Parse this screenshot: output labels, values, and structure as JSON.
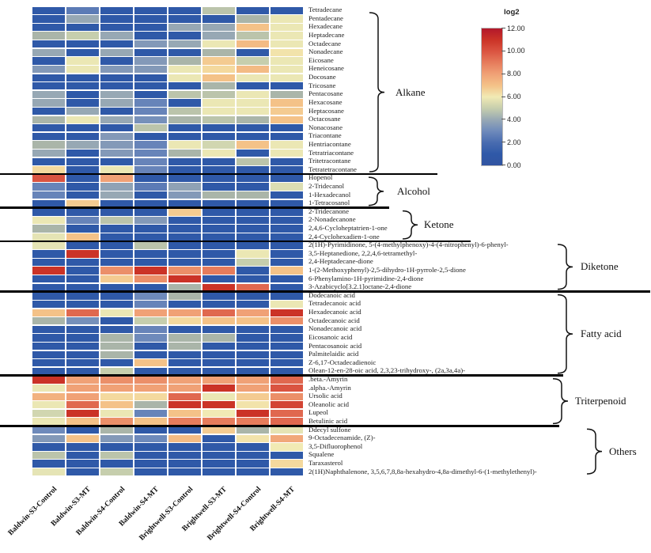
{
  "chart_data": {
    "type": "heatmap",
    "value_scale": "log2",
    "legend": {
      "title": "log2",
      "min": 0,
      "max": 12,
      "ticks": [
        "12.00",
        "10.00",
        "8.00",
        "6.00",
        "4.00",
        "2.00",
        "0.00"
      ]
    },
    "colormap": [
      {
        "v": 0,
        "c": "#3154a1"
      },
      {
        "v": 1,
        "c": "#2f59a8"
      },
      {
        "v": 2,
        "c": "#496cb0"
      },
      {
        "v": 3,
        "c": "#6e8abb"
      },
      {
        "v": 4,
        "c": "#97a8b4"
      },
      {
        "v": 4.5,
        "c": "#aab5a9"
      },
      {
        "v": 5,
        "c": "#c6cead"
      },
      {
        "v": 5.5,
        "c": "#e2e2b5"
      },
      {
        "v": 6,
        "c": "#f1eab4"
      },
      {
        "v": 6.5,
        "c": "#f4d99e"
      },
      {
        "v": 7,
        "c": "#f4c288"
      },
      {
        "v": 8,
        "c": "#f0a176"
      },
      {
        "v": 9,
        "c": "#e67c5c"
      },
      {
        "v": 10,
        "c": "#da5441"
      },
      {
        "v": 11,
        "c": "#cb3327"
      },
      {
        "v": 12,
        "c": "#b2182b"
      }
    ],
    "columns": [
      "Baldwin-S3-Control",
      "Baldwin-S3-MT",
      "Baldwin-S4-Control",
      "Baldwin-S4-MT",
      "Brightwell-S3-Control",
      "Brightwell-S3-MT",
      "Brightwell-S4-Control",
      "Brightwell-S4-MT"
    ],
    "groups": [
      {
        "name": "Alkane",
        "rows": [
          {
            "label": "Tetradecane",
            "values": [
              1,
              2.5,
              1,
              1,
              1,
              4.8,
              1,
              1
            ]
          },
          {
            "label": "Pentadecane",
            "values": [
              1,
              4,
              1,
              1,
              1,
              1,
              4.5,
              5.8
            ]
          },
          {
            "label": "Hexadecane",
            "values": [
              1,
              1,
              1,
              1,
              4,
              4,
              7,
              5.8
            ]
          },
          {
            "label": "Heptadecane",
            "values": [
              4.5,
              5,
              4,
              1,
              1,
              4,
              4.8,
              5.8
            ]
          },
          {
            "label": "Octadecane",
            "values": [
              1,
              1,
              1,
              3.5,
              4,
              5.8,
              7.2,
              5.8
            ]
          },
          {
            "label": "Nonadecane",
            "values": [
              4,
              1,
              4,
              1,
              1,
              4.5,
              1,
              6.2
            ]
          },
          {
            "label": "Eicosane",
            "values": [
              1,
              5.8,
              1,
              3.5,
              4.5,
              6.8,
              5,
              5.8
            ]
          },
          {
            "label": "Heneicosane",
            "values": [
              3.5,
              5.8,
              3.5,
              3.5,
              5.8,
              6.5,
              7.2,
              5.8
            ]
          },
          {
            "label": "Docosane",
            "values": [
              1,
              1,
              1,
              1,
              5.8,
              7,
              5.8,
              5.8
            ]
          },
          {
            "label": "Tricosane",
            "values": [
              1,
              1,
              1,
              1,
              1,
              4.5,
              1,
              1
            ]
          },
          {
            "label": "Pentacosane",
            "values": [
              4,
              1,
              4,
              1,
              4.8,
              4.8,
              5.8,
              4.5
            ]
          },
          {
            "label": "Hexacosane",
            "values": [
              4,
              1,
              4,
              2.8,
              1,
              5.8,
              5.8,
              7
            ]
          },
          {
            "label": "Heptacosane",
            "values": [
              1,
              4,
              1,
              2.8,
              4.8,
              5.8,
              5.8,
              6.8
            ]
          },
          {
            "label": "Octacosane",
            "values": [
              4.5,
              5.8,
              4,
              3.2,
              4.5,
              4.8,
              4.5,
              7
            ]
          },
          {
            "label": "Nonacosane",
            "values": [
              1,
              1,
              1,
              4.8,
              1,
              1,
              1,
              1
            ]
          },
          {
            "label": "Triacontane",
            "values": [
              1,
              1,
              3.5,
              1,
              1,
              1,
              1,
              1
            ]
          },
          {
            "label": "Hentriacontane",
            "values": [
              4.5,
              4,
              3.5,
              2.8,
              5.8,
              5.2,
              7,
              5.8
            ]
          },
          {
            "label": "Tetratriacontane",
            "values": [
              4,
              1,
              3.5,
              2.8,
              4.5,
              5.8,
              1,
              5.8
            ]
          },
          {
            "label": "Tritetracontane",
            "values": [
              1,
              1,
              1,
              2.8,
              1,
              1,
              4.8,
              1
            ]
          },
          {
            "label": "Tetratetracontane",
            "values": [
              6.5,
              1,
              5.8,
              2.8,
              1,
              1,
              1,
              1
            ]
          }
        ]
      },
      {
        "name": "Alcohol",
        "rows": [
          {
            "label": "Hopenol",
            "values": [
              10,
              1,
              8,
              1,
              1,
              1,
              1,
              1
            ]
          },
          {
            "label": "2-Tridecanol",
            "values": [
              2.8,
              1,
              3.8,
              2.5,
              3.8,
              1,
              1,
              5.4
            ]
          },
          {
            "label": "1-Hexadecanol",
            "values": [
              2.8,
              1,
              4,
              1,
              3.5,
              4.5,
              4.5,
              1
            ]
          },
          {
            "label": "1-Tetracosanol",
            "values": [
              1,
              6.8,
              1,
              1,
              1,
              1,
              1,
              1
            ]
          }
        ]
      },
      {
        "name": "Ketone",
        "rows": [
          {
            "label": "2-Tridecanone",
            "values": [
              1,
              1,
              1,
              1,
              6.8,
              1,
              1,
              1
            ]
          },
          {
            "label": "2-Nonadecanone",
            "values": [
              5.8,
              2.8,
              4.8,
              3.5,
              1,
              1,
              1,
              1
            ]
          },
          {
            "label": "2,4,6-Cycloheptatrien-1-one",
            "values": [
              4.5,
              1,
              1,
              1,
              1,
              1,
              1,
              1
            ]
          },
          {
            "label": "2,4-Cyclohexadien-1-one",
            "values": [
              5.6,
              7,
              1,
              1,
              1,
              1,
              1,
              1
            ]
          }
        ]
      },
      {
        "name": "Diketone",
        "rows": [
          {
            "label": "2(1H)-Pyrimidinone, 5-(4-methylphenoxy)-4-(4-nitrophenyl)-6-phenyl-",
            "values": [
              5.6,
              1,
              1,
              4.8,
              1,
              1,
              1,
              1
            ]
          },
          {
            "label": "3,5-Heptanedione, 2,2,4,6-tetramethyl-",
            "values": [
              1,
              11,
              1,
              1,
              1,
              1,
              5.8,
              1
            ]
          },
          {
            "label": "2,4-Heptadecane-dione",
            "values": [
              1,
              1,
              1,
              1,
              1,
              1,
              5,
              1
            ]
          },
          {
            "label": "1-(2-Methoxyphenyl)-2,5-dihydro-1H-pyrrole-2,5-dione",
            "values": [
              11,
              1,
              8.5,
              11,
              8.5,
              9,
              1,
              7
            ]
          },
          {
            "label": "6-Phenylamino-1H-pyrimidine-2,4-dione",
            "values": [
              1,
              1,
              6.8,
              8.5,
              11,
              1,
              1,
              1
            ]
          },
          {
            "label": "3-Azabicyclo[3.2.1]octane-2,4-dione",
            "values": [
              1,
              1,
              1,
              1,
              4.5,
              11,
              9.5,
              1
            ]
          }
        ]
      },
      {
        "name": "Fatty acid",
        "rows": [
          {
            "label": "Dodecanoic acid",
            "values": [
              1,
              1,
              1,
              3,
              4.5,
              1,
              1,
              1
            ]
          },
          {
            "label": "Tetradecanoic acid",
            "values": [
              1,
              1,
              1,
              2.8,
              1,
              1,
              1,
              5.8
            ]
          },
          {
            "label": "Hexadecanoic acid",
            "values": [
              7,
              9.5,
              5.8,
              8,
              8,
              9.5,
              8,
              11
            ]
          },
          {
            "label": "Octadecanoic acid",
            "values": [
              4.5,
              3.2,
              1,
              5,
              6.5,
              7,
              7,
              8.5
            ]
          },
          {
            "label": "Nonadecanoic acid",
            "values": [
              1,
              1,
              1,
              2.8,
              1,
              1,
              1,
              1
            ]
          },
          {
            "label": "Eicosanoic acid",
            "values": [
              1,
              1,
              4.5,
              3,
              4.5,
              4.5,
              1,
              1
            ]
          },
          {
            "label": "Pentacosanoic acid",
            "values": [
              1,
              1,
              4.5,
              1,
              4.5,
              1,
              1,
              1
            ]
          },
          {
            "label": "Palmitelaidic acid",
            "values": [
              1,
              1,
              4.5,
              1,
              1,
              1,
              1,
              1
            ]
          },
          {
            "label": "Z-6,17-Octadecadienoic",
            "values": [
              1,
              1,
              1,
              7,
              1,
              1,
              1,
              1
            ]
          },
          {
            "label": "Olean-12-en-28-oic acid, 2,3,23-trihydroxy-, (2a,3a,4a)-",
            "values": [
              1,
              1,
              5,
              1,
              1,
              1,
              1,
              1
            ]
          }
        ]
      },
      {
        "name": "Triterpenoid",
        "rows": [
          {
            "label": ".beta.-Amyrin",
            "values": [
              11,
              8,
              8.5,
              8.5,
              8,
              8,
              8,
              9.5
            ]
          },
          {
            "label": ".alpha.-Amyrin",
            "values": [
              5.8,
              8,
              8,
              8,
              8,
              11,
              8,
              10
            ]
          },
          {
            "label": "Ursolic acid",
            "values": [
              7.5,
              8,
              6.5,
              6.5,
              9.5,
              5.8,
              6.8,
              8.5
            ]
          },
          {
            "label": "Oleanolic acid",
            "values": [
              5.8,
              9.5,
              7,
              4.5,
              11,
              11,
              6.2,
              10.5
            ]
          },
          {
            "label": "Lupeol",
            "values": [
              5.2,
              11,
              5.8,
              2.8,
              7,
              6,
              11,
              9.5
            ]
          },
          {
            "label": "Betulinic acid",
            "values": [
              5.8,
              7,
              8.5,
              7,
              9,
              9,
              9,
              9.5
            ]
          }
        ]
      },
      {
        "name": "Others",
        "rows": [
          {
            "label": "Ddecyl sulfone",
            "values": [
              3,
              1,
              4.5,
              1,
              1,
              6.8,
              4.5,
              5.6
            ]
          },
          {
            "label": "9-Octadecenamide, (Z)-",
            "values": [
              3.5,
              7,
              3.5,
              3,
              7.2,
              1,
              6.2,
              7.8
            ]
          },
          {
            "label": "3,5-Difluorophenol",
            "values": [
              1,
              1,
              1,
              1,
              1,
              1,
              1,
              6
            ]
          },
          {
            "label": "Squalene",
            "values": [
              4.8,
              1,
              4.8,
              1,
              1,
              1,
              1,
              1
            ]
          },
          {
            "label": "Taraxasterol",
            "values": [
              1,
              1,
              1,
              1,
              1,
              1,
              1,
              6.5
            ]
          },
          {
            "label": "2(1H)Naphthalenone, 3,5,6,7,8,8a-hexahydro-4,8a-dimethyl-6-(1-methylethenyl)-",
            "values": [
              5.6,
              1,
              5,
              1,
              1,
              1,
              1,
              1
            ]
          }
        ]
      }
    ]
  }
}
